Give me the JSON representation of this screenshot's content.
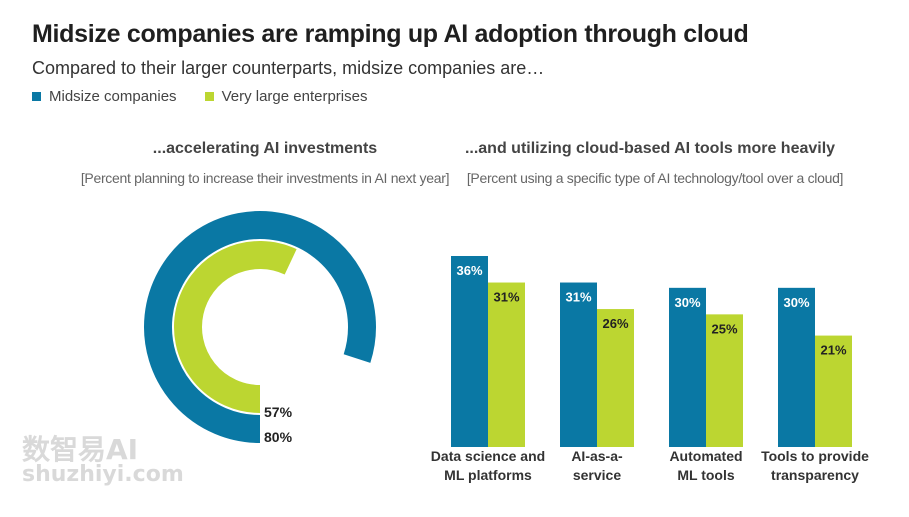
{
  "title": "Midsize companies are ramping up AI adoption through cloud",
  "subtitle": "Compared to their larger counterparts, midsize companies are…",
  "legend": {
    "midsize": "Midsize companies",
    "large": "Very large enterprises"
  },
  "colors": {
    "midsize": "#0a78a4",
    "large": "#bcd631"
  },
  "left_heading": "...accelerating AI investments",
  "left_note": "[Percent planning to increase their investments in AI next year]",
  "right_heading": "...and utilizing cloud-based AI tools more heavily",
  "right_note": "[Percent using a specific type of AI technology/tool over a cloud]",
  "watermark": {
    "line1": "数智易AI",
    "line2": "shuzhiyi.com"
  },
  "chart_data": [
    {
      "type": "pie",
      "style": "radial-rings",
      "series": [
        {
          "name": "Midsize companies",
          "value": 80,
          "label": "80%"
        },
        {
          "name": "Very large enterprises",
          "value": 57,
          "label": "57%"
        }
      ]
    },
    {
      "type": "bar",
      "categories": [
        [
          "Data science and",
          "ML platforms"
        ],
        [
          "AI-as-a-",
          "service"
        ],
        [
          "Automated",
          "ML tools"
        ],
        [
          "Tools to provide",
          "transparency"
        ]
      ],
      "series": [
        {
          "name": "Midsize companies",
          "values": [
            36,
            31,
            30,
            30
          ],
          "labels": [
            "36%",
            "31%",
            "30%",
            "30%"
          ]
        },
        {
          "name": "Very large enterprises",
          "values": [
            31,
            26,
            25,
            21
          ],
          "labels": [
            "31%",
            "26%",
            "25%",
            "21%"
          ]
        }
      ],
      "ylim": [
        0,
        36
      ]
    }
  ]
}
